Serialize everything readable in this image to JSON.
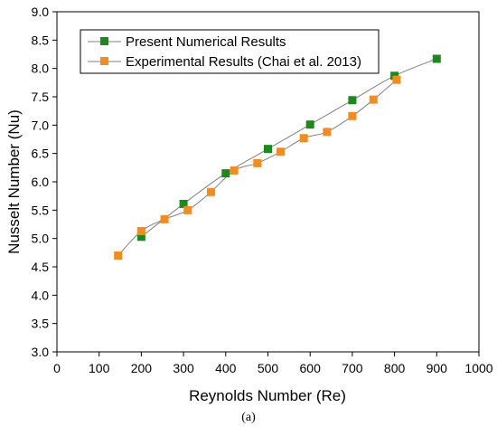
{
  "caption": "(a)",
  "chart_data": {
    "type": "line",
    "xlabel": "Reynolds Number (Re)",
    "ylabel": "Nusselt Number (Nu)",
    "xlim": [
      0,
      1000
    ],
    "ylim": [
      3.0,
      9.0
    ],
    "x_ticks": [
      "0",
      "100",
      "200",
      "300",
      "400",
      "500",
      "600",
      "700",
      "800",
      "900",
      "1000"
    ],
    "y_ticks": [
      "3.0",
      "3.5",
      "4.0",
      "4.5",
      "5.0",
      "5.5",
      "6.0",
      "6.5",
      "7.0",
      "7.5",
      "8.0",
      "8.5",
      "9.0"
    ],
    "grid": false,
    "legend_position": "top-left",
    "series": [
      {
        "name": "Present Numerical Results",
        "color": "#1a8a1a",
        "marker": "square",
        "x": [
          200,
          300,
          400,
          500,
          600,
          700,
          800,
          900
        ],
        "y": [
          5.03,
          5.61,
          6.15,
          6.58,
          7.01,
          7.44,
          7.87,
          8.17
        ]
      },
      {
        "name": "Experimental Results (Chai et al. 2013)",
        "color": "#f28c1e",
        "marker": "square",
        "x": [
          145,
          200,
          255,
          310,
          365,
          420,
          475,
          530,
          585,
          640,
          700,
          750,
          805
        ],
        "y": [
          4.7,
          5.13,
          5.34,
          5.5,
          5.82,
          6.2,
          6.33,
          6.53,
          6.77,
          6.88,
          7.16,
          7.45,
          7.8
        ]
      }
    ]
  }
}
